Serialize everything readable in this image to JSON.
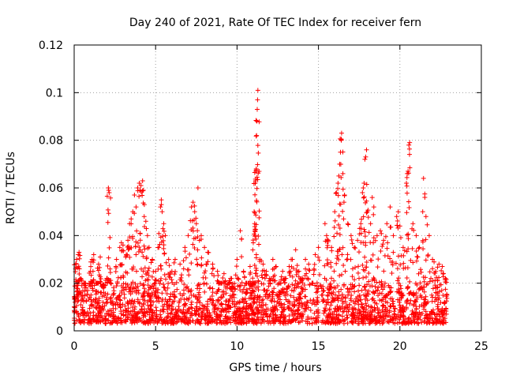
{
  "chart_data": {
    "type": "scatter",
    "title": "Day 240 of 2021, Rate Of TEC Index for receiver fern",
    "xlabel": "GPS time / hours",
    "ylabel": "ROTI / TECUs",
    "xlim": [
      0,
      25
    ],
    "ylim": [
      0,
      0.12
    ],
    "x_ticks": [
      "0",
      "5",
      "10",
      "15",
      "20",
      "25"
    ],
    "y_ticks": [
      "0",
      "0.02",
      "0.04",
      "0.06",
      "0.08",
      "0.1",
      "0.12"
    ],
    "grid": true,
    "marker": "+",
    "color": "#ff0000",
    "series": [
      {
        "points": [
          [
            0.0,
            0.01
          ],
          [
            0.05,
            0.012
          ],
          [
            0.1,
            0.028
          ],
          [
            0.15,
            0.03
          ],
          [
            0.2,
            0.015
          ],
          [
            0.25,
            0.032
          ],
          [
            0.3,
            0.033
          ],
          [
            0.4,
            0.022
          ],
          [
            0.5,
            0.013
          ],
          [
            0.6,
            0.02
          ],
          [
            0.8,
            0.015
          ],
          [
            1.0,
            0.025
          ],
          [
            1.1,
            0.03
          ],
          [
            1.2,
            0.032
          ],
          [
            1.4,
            0.02
          ],
          [
            1.5,
            0.028
          ],
          [
            1.6,
            0.031
          ],
          [
            1.8,
            0.018
          ],
          [
            2.0,
            0.022
          ],
          [
            2.1,
            0.06
          ],
          [
            2.12,
            0.059
          ],
          [
            2.15,
            0.058
          ],
          [
            2.2,
            0.026
          ],
          [
            2.4,
            0.015
          ],
          [
            2.6,
            0.03
          ],
          [
            2.8,
            0.035
          ],
          [
            2.9,
            0.037
          ],
          [
            3.0,
            0.036
          ],
          [
            3.2,
            0.032
          ],
          [
            3.3,
            0.038
          ],
          [
            3.4,
            0.045
          ],
          [
            3.5,
            0.047
          ],
          [
            3.6,
            0.05
          ],
          [
            3.7,
            0.057
          ],
          [
            3.8,
            0.052
          ],
          [
            3.9,
            0.06
          ],
          [
            4.0,
            0.062
          ],
          [
            4.1,
            0.061
          ],
          [
            4.2,
            0.063
          ],
          [
            4.25,
            0.059
          ],
          [
            4.3,
            0.048
          ],
          [
            4.4,
            0.046
          ],
          [
            4.5,
            0.04
          ],
          [
            4.6,
            0.035
          ],
          [
            4.8,
            0.03
          ],
          [
            5.0,
            0.025
          ],
          [
            5.2,
            0.035
          ],
          [
            5.3,
            0.052
          ],
          [
            5.35,
            0.055
          ],
          [
            5.4,
            0.05
          ],
          [
            5.5,
            0.045
          ],
          [
            5.6,
            0.04
          ],
          [
            5.8,
            0.03
          ],
          [
            6.0,
            0.025
          ],
          [
            6.2,
            0.03
          ],
          [
            6.5,
            0.028
          ],
          [
            6.8,
            0.035
          ],
          [
            7.0,
            0.04
          ],
          [
            7.2,
            0.052
          ],
          [
            7.3,
            0.054
          ],
          [
            7.4,
            0.05
          ],
          [
            7.5,
            0.045
          ],
          [
            7.6,
            0.06
          ],
          [
            7.8,
            0.04
          ],
          [
            8.0,
            0.035
          ],
          [
            8.2,
            0.033
          ],
          [
            8.5,
            0.028
          ],
          [
            8.8,
            0.025
          ],
          [
            9.0,
            0.02
          ],
          [
            9.2,
            0.024
          ],
          [
            9.4,
            0.018
          ],
          [
            9.6,
            0.022
          ],
          [
            9.8,
            0.015
          ],
          [
            10.0,
            0.03
          ],
          [
            10.2,
            0.042
          ],
          [
            10.4,
            0.025
          ],
          [
            10.6,
            0.02
          ],
          [
            10.8,
            0.027
          ],
          [
            11.0,
            0.02
          ],
          [
            11.05,
            0.05
          ],
          [
            11.08,
            0.045
          ],
          [
            11.1,
            0.04
          ],
          [
            11.12,
            0.062
          ],
          [
            11.14,
            0.063
          ],
          [
            11.16,
            0.067
          ],
          [
            11.18,
            0.068
          ],
          [
            11.2,
            0.082
          ],
          [
            11.22,
            0.088
          ],
          [
            11.24,
            0.093
          ],
          [
            11.26,
            0.097
          ],
          [
            11.28,
            0.101
          ],
          [
            11.4,
            0.03
          ],
          [
            11.6,
            0.028
          ],
          [
            11.8,
            0.025
          ],
          [
            12.0,
            0.022
          ],
          [
            12.2,
            0.03
          ],
          [
            12.4,
            0.027
          ],
          [
            12.6,
            0.02
          ],
          [
            12.8,
            0.025
          ],
          [
            13.0,
            0.022
          ],
          [
            13.2,
            0.027
          ],
          [
            13.4,
            0.03
          ],
          [
            13.6,
            0.034
          ],
          [
            13.8,
            0.025
          ],
          [
            14.0,
            0.022
          ],
          [
            14.2,
            0.03
          ],
          [
            14.4,
            0.028
          ],
          [
            14.6,
            0.02
          ],
          [
            14.8,
            0.032
          ],
          [
            15.0,
            0.035
          ],
          [
            15.2,
            0.015
          ],
          [
            15.4,
            0.045
          ],
          [
            15.5,
            0.04
          ],
          [
            15.6,
            0.038
          ],
          [
            15.8,
            0.035
          ],
          [
            16.0,
            0.05
          ],
          [
            16.1,
            0.058
          ],
          [
            16.2,
            0.062
          ],
          [
            16.25,
            0.065
          ],
          [
            16.3,
            0.07
          ],
          [
            16.35,
            0.075
          ],
          [
            16.4,
            0.08
          ],
          [
            16.42,
            0.083
          ],
          [
            16.5,
            0.066
          ],
          [
            16.6,
            0.057
          ],
          [
            16.8,
            0.045
          ],
          [
            17.0,
            0.04
          ],
          [
            17.2,
            0.035
          ],
          [
            17.4,
            0.038
          ],
          [
            17.6,
            0.045
          ],
          [
            17.7,
            0.058
          ],
          [
            17.75,
            0.06
          ],
          [
            17.8,
            0.062
          ],
          [
            17.85,
            0.072
          ],
          [
            17.9,
            0.073
          ],
          [
            17.95,
            0.076
          ],
          [
            18.0,
            0.05
          ],
          [
            18.2,
            0.045
          ],
          [
            18.3,
            0.056
          ],
          [
            18.4,
            0.052
          ],
          [
            18.6,
            0.04
          ],
          [
            18.8,
            0.042
          ],
          [
            19.0,
            0.038
          ],
          [
            19.2,
            0.045
          ],
          [
            19.4,
            0.052
          ],
          [
            19.6,
            0.04
          ],
          [
            19.8,
            0.048
          ],
          [
            19.9,
            0.05
          ],
          [
            20.0,
            0.044
          ],
          [
            20.2,
            0.035
          ],
          [
            20.4,
            0.062
          ],
          [
            20.45,
            0.066
          ],
          [
            20.5,
            0.067
          ],
          [
            20.55,
            0.078
          ],
          [
            20.6,
            0.079
          ],
          [
            20.8,
            0.045
          ],
          [
            21.0,
            0.04
          ],
          [
            21.2,
            0.035
          ],
          [
            21.4,
            0.05
          ],
          [
            21.45,
            0.064
          ],
          [
            21.6,
            0.048
          ],
          [
            21.8,
            0.04
          ],
          [
            22.0,
            0.03
          ],
          [
            22.2,
            0.025
          ],
          [
            22.4,
            0.028
          ],
          [
            22.6,
            0.027
          ],
          [
            22.8,
            0.022
          ]
        ]
      }
    ],
    "dense_band": {
      "segments": [
        [
          0.0,
          15.0
        ],
        [
          15.2,
          22.9
        ]
      ],
      "y_range": [
        0.003,
        0.02
      ],
      "density_per_hour": 90
    }
  }
}
